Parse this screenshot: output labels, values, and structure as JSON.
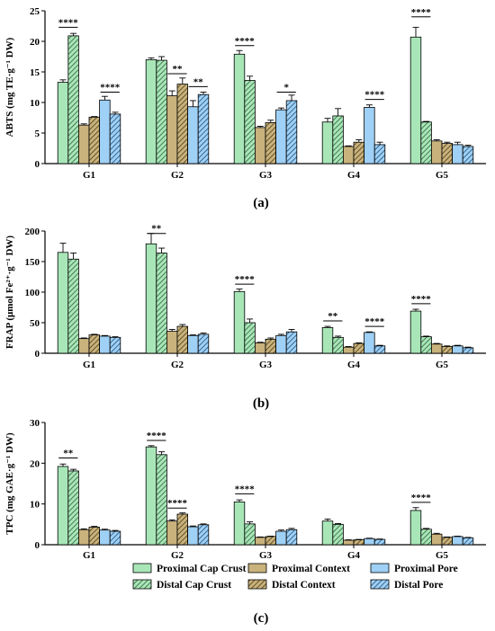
{
  "figure": {
    "panel_labels": [
      "(a)",
      "(b)",
      "(c)"
    ],
    "legend": [
      {
        "label": "Proximal Cap Crust",
        "color": "#a8e6b8",
        "hatched": false
      },
      {
        "label": "Distal Cap Crust",
        "color": "#a8e6b8",
        "hatched": true
      },
      {
        "label": "Proximal Context",
        "color": "#c9b27c",
        "hatched": false
      },
      {
        "label": "Distal Context",
        "color": "#c9b27c",
        "hatched": true
      },
      {
        "label": "Proximal Pore",
        "color": "#9fd0f5",
        "hatched": false
      },
      {
        "label": "Distal Pore",
        "color": "#9fd0f5",
        "hatched": true
      }
    ]
  },
  "chart_data": [
    {
      "type": "bar",
      "panel": "(a)",
      "ylabel": "ABTS (mg TE·g⁻¹ DW)",
      "ylim": [
        0,
        25
      ],
      "yticks": [
        0,
        5,
        10,
        15,
        20,
        25
      ],
      "categories": [
        "G1",
        "G2",
        "G3",
        "G4",
        "G5"
      ],
      "series": [
        {
          "name": "Proximal Cap Crust",
          "values": [
            13.3,
            17.0,
            17.9,
            6.8,
            20.7
          ],
          "errors": [
            0.4,
            0.3,
            0.6,
            0.6,
            1.6
          ]
        },
        {
          "name": "Distal Cap Crust",
          "values": [
            20.9,
            16.9,
            13.6,
            7.8,
            6.8
          ],
          "errors": [
            0.4,
            0.6,
            0.7,
            1.2,
            0.1
          ]
        },
        {
          "name": "Proximal Context",
          "values": [
            6.3,
            11.1,
            5.9,
            2.8,
            3.7
          ],
          "errors": [
            0.2,
            0.8,
            0.2,
            0.1,
            0.2
          ]
        },
        {
          "name": "Distal Context",
          "values": [
            7.6,
            13.0,
            6.7,
            3.5,
            3.3
          ],
          "errors": [
            0.1,
            1.0,
            0.4,
            0.4,
            0.2
          ]
        },
        {
          "name": "Proximal Pore",
          "values": [
            10.4,
            9.3,
            8.8,
            9.2,
            3.1
          ],
          "errors": [
            0.6,
            1.0,
            0.3,
            0.4,
            0.4
          ]
        },
        {
          "name": "Distal Pore",
          "values": [
            8.1,
            11.3,
            10.3,
            3.1,
            2.8
          ],
          "errors": [
            0.3,
            0.4,
            0.9,
            0.4,
            0.2
          ]
        }
      ],
      "significance": [
        {
          "group": 0,
          "from": 0,
          "to": 1,
          "label": "****",
          "y": 22.3
        },
        {
          "group": 0,
          "from": 4,
          "to": 5,
          "label": "****",
          "y": 11.7
        },
        {
          "group": 1,
          "from": 2,
          "to": 3,
          "label": "**",
          "y": 14.7
        },
        {
          "group": 1,
          "from": 4,
          "to": 5,
          "label": "**",
          "y": 12.6
        },
        {
          "group": 2,
          "from": 0,
          "to": 1,
          "label": "****",
          "y": 19.3
        },
        {
          "group": 2,
          "from": 4,
          "to": 5,
          "label": "*",
          "y": 11.7
        },
        {
          "group": 3,
          "from": 4,
          "to": 5,
          "label": "****",
          "y": 10.5
        },
        {
          "group": 4,
          "from": 0,
          "to": 1,
          "label": "****",
          "y": 24.0
        }
      ]
    },
    {
      "type": "bar",
      "panel": "(b)",
      "ylabel": "FRAP (μmol Fe²⁺·g⁻¹ DW)",
      "ylim": [
        0,
        200
      ],
      "yticks": [
        0,
        50,
        100,
        150,
        200
      ],
      "categories": [
        "G1",
        "G2",
        "G3",
        "G4",
        "G5"
      ],
      "series": [
        {
          "name": "Proximal Cap Crust",
          "values": [
            165,
            179,
            101,
            42,
            69
          ],
          "errors": [
            15,
            17,
            4,
            2,
            3
          ]
        },
        {
          "name": "Distal Cap Crust",
          "values": [
            154,
            164,
            50,
            26,
            27
          ],
          "errors": [
            10,
            8,
            6,
            2,
            1
          ]
        },
        {
          "name": "Proximal Context",
          "values": [
            24,
            36,
            17,
            10,
            15
          ],
          "errors": [
            1,
            3,
            1,
            1,
            1
          ]
        },
        {
          "name": "Distal Context",
          "values": [
            30,
            44,
            23,
            16,
            11
          ],
          "errors": [
            1,
            3,
            2,
            1,
            1
          ]
        },
        {
          "name": "Proximal Pore",
          "values": [
            28,
            29,
            29,
            34,
            12
          ],
          "errors": [
            1,
            1,
            2,
            1,
            1
          ]
        },
        {
          "name": "Distal Pore",
          "values": [
            26,
            31,
            35,
            12,
            9
          ],
          "errors": [
            1,
            2,
            4,
            1,
            1
          ]
        }
      ],
      "significance": [
        {
          "group": 1,
          "from": 0,
          "to": 1,
          "label": "**",
          "y": 196
        },
        {
          "group": 2,
          "from": 0,
          "to": 1,
          "label": "****",
          "y": 113
        },
        {
          "group": 3,
          "from": 0,
          "to": 1,
          "label": "**",
          "y": 53
        },
        {
          "group": 3,
          "from": 4,
          "to": 5,
          "label": "****",
          "y": 44
        },
        {
          "group": 4,
          "from": 0,
          "to": 1,
          "label": "****",
          "y": 81
        }
      ]
    },
    {
      "type": "bar",
      "panel": "(c)",
      "ylabel": "TPC (mg GAE·g⁻¹ DW)",
      "ylim": [
        0,
        30
      ],
      "yticks": [
        0,
        10,
        20,
        30
      ],
      "categories": [
        "G1",
        "G2",
        "G3",
        "G4",
        "G5"
      ],
      "series": [
        {
          "name": "Proximal Cap Crust",
          "values": [
            19.2,
            24.0,
            10.5,
            5.8,
            8.4
          ],
          "errors": [
            0.6,
            0.3,
            0.5,
            0.5,
            0.7
          ]
        },
        {
          "name": "Distal Cap Crust",
          "values": [
            18.1,
            22.1,
            5.1,
            5.0,
            3.8
          ],
          "errors": [
            0.4,
            0.7,
            0.5,
            0.2,
            0.2
          ]
        },
        {
          "name": "Proximal Context",
          "values": [
            3.7,
            5.8,
            1.8,
            1.1,
            2.6
          ],
          "errors": [
            0.2,
            0.3,
            0.1,
            0.1,
            0.2
          ]
        },
        {
          "name": "Distal Context",
          "values": [
            4.3,
            7.5,
            2.0,
            1.2,
            1.8
          ],
          "errors": [
            0.2,
            0.3,
            0.1,
            0.1,
            0.1
          ]
        },
        {
          "name": "Proximal Pore",
          "values": [
            3.6,
            4.4,
            3.3,
            1.5,
            2.0
          ],
          "errors": [
            0.2,
            0.2,
            0.3,
            0.1,
            0.1
          ]
        },
        {
          "name": "Distal Pore",
          "values": [
            3.3,
            4.9,
            3.7,
            1.3,
            1.7
          ],
          "errors": [
            0.2,
            0.2,
            0.3,
            0.1,
            0.1
          ]
        }
      ],
      "significance": [
        {
          "group": 0,
          "from": 0,
          "to": 1,
          "label": "**",
          "y": 21.3
        },
        {
          "group": 1,
          "from": 0,
          "to": 1,
          "label": "****",
          "y": 25.6
        },
        {
          "group": 1,
          "from": 2,
          "to": 3,
          "label": "****",
          "y": 9.0
        },
        {
          "group": 2,
          "from": 0,
          "to": 1,
          "label": "****",
          "y": 12.5
        },
        {
          "group": 4,
          "from": 0,
          "to": 1,
          "label": "****",
          "y": 10.4
        }
      ]
    }
  ]
}
